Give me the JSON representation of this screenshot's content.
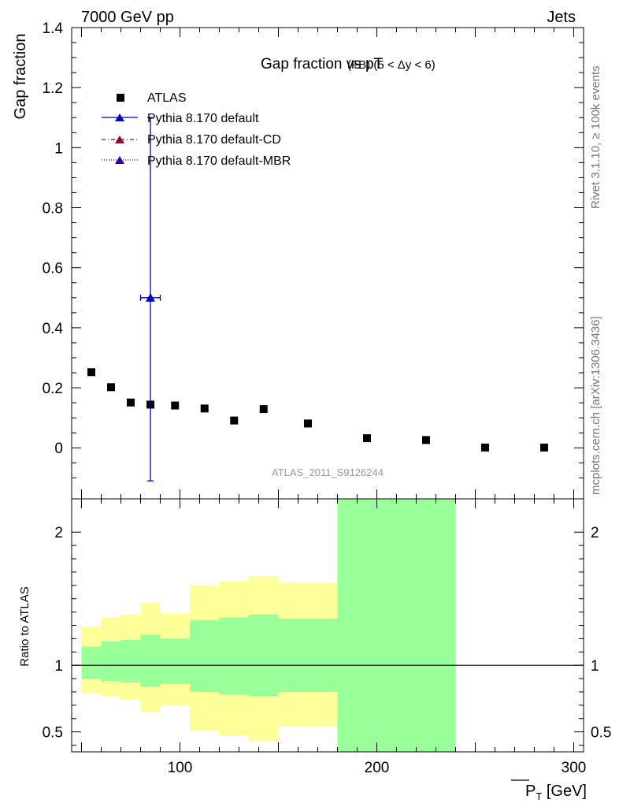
{
  "header": {
    "left": "7000 GeV pp",
    "right": "Jets"
  },
  "side_labels": {
    "top": "Rivet 3.1.10, ≥ 100k events",
    "bottom": "mcplots.cern.ch [arXiv:1306.3436]"
  },
  "chart_data": [
    {
      "type": "scatter",
      "title": "Gap fraction vs pT",
      "title_suffix": "(FB) (5 < Δy < 6)",
      "ylabel": "Gap fraction",
      "ylim": [
        -0.17,
        1.4
      ],
      "xlim": [
        45,
        305
      ],
      "yticks": [
        0,
        0.2,
        0.4,
        0.6,
        0.8,
        1,
        1.2,
        1.4
      ],
      "ytick_labels": [
        "0",
        "0.2",
        "0.4",
        "0.6",
        "0.8",
        "1",
        "1.2",
        "1.4"
      ],
      "watermark": "ATLAS_2011_S9126244",
      "legend": {
        "placement": "top-left",
        "entries": [
          "ATLAS",
          "Pythia 8.170 default",
          "Pythia 8.170 default-CD",
          "Pythia 8.170 default-MBR"
        ]
      },
      "series": [
        {
          "name": "ATLAS",
          "color": "#000000",
          "marker": "square",
          "x": [
            55,
            65,
            75,
            85,
            97.5,
            112.5,
            127.5,
            142.5,
            165,
            195,
            225,
            255,
            285
          ],
          "y": [
            0.252,
            0.202,
            0.151,
            0.144,
            0.141,
            0.131,
            0.091,
            0.129,
            0.081,
            0.032,
            0.026,
            0.001,
            0.001
          ]
        },
        {
          "name": "Pythia 8.170 default",
          "color": "#0000cc",
          "marker": "triangle",
          "x": [
            85
          ],
          "y": [
            0.5
          ],
          "xerr": [
            5
          ],
          "yerr_low": [
            0.61
          ],
          "yerr_high": [
            0.6
          ]
        },
        {
          "name": "Pythia 8.170 default-CD",
          "color": "#990033",
          "marker": "triangle",
          "x": [],
          "y": []
        },
        {
          "name": "Pythia 8.170 default-MBR",
          "color": "#330099",
          "marker": "triangle",
          "x": [],
          "y": []
        }
      ]
    },
    {
      "type": "area",
      "ylabel": "Ratio to ATLAS",
      "xlabel": "P̅T [GeV]",
      "ylim": [
        0.35,
        2.25
      ],
      "xlim": [
        45,
        305
      ],
      "xticks": [
        100,
        200,
        300
      ],
      "yticks": [
        0.5,
        1,
        2
      ],
      "ytick_labels": [
        "0.5",
        "1",
        "2"
      ],
      "bands": [
        {
          "name": "yellow",
          "color": "#ffff99",
          "bins": [
            {
              "x0": 50,
              "x1": 60,
              "lo": 0.79,
              "hi": 1.29
            },
            {
              "x0": 60,
              "x1": 70,
              "lo": 0.77,
              "hi": 1.36
            },
            {
              "x0": 70,
              "x1": 80,
              "lo": 0.74,
              "hi": 1.38
            },
            {
              "x0": 80,
              "x1": 90,
              "lo": 0.65,
              "hi": 1.47
            },
            {
              "x0": 90,
              "x1": 105,
              "lo": 0.7,
              "hi": 1.39
            },
            {
              "x0": 105,
              "x1": 120,
              "lo": 0.51,
              "hi": 1.6
            },
            {
              "x0": 120,
              "x1": 135,
              "lo": 0.47,
              "hi": 1.63
            },
            {
              "x0": 135,
              "x1": 150,
              "lo": 0.43,
              "hi": 1.67
            },
            {
              "x0": 150,
              "x1": 180,
              "lo": 0.54,
              "hi": 1.62
            },
            {
              "x0": 180,
              "x1": 240,
              "lo": 0.35,
              "hi": 2.25
            }
          ]
        },
        {
          "name": "green",
          "color": "#99ff99",
          "bins": [
            {
              "x0": 50,
              "x1": 60,
              "lo": 0.9,
              "hi": 1.14
            },
            {
              "x0": 60,
              "x1": 70,
              "lo": 0.88,
              "hi": 1.18
            },
            {
              "x0": 70,
              "x1": 80,
              "lo": 0.87,
              "hi": 1.19
            },
            {
              "x0": 80,
              "x1": 90,
              "lo": 0.84,
              "hi": 1.23
            },
            {
              "x0": 90,
              "x1": 105,
              "lo": 0.86,
              "hi": 1.2
            },
            {
              "x0": 105,
              "x1": 120,
              "lo": 0.8,
              "hi": 1.34
            },
            {
              "x0": 120,
              "x1": 135,
              "lo": 0.78,
              "hi": 1.36
            },
            {
              "x0": 135,
              "x1": 150,
              "lo": 0.77,
              "hi": 1.38
            },
            {
              "x0": 150,
              "x1": 180,
              "lo": 0.8,
              "hi": 1.35
            },
            {
              "x0": 180,
              "x1": 240,
              "lo": 0.35,
              "hi": 2.25
            }
          ]
        }
      ],
      "reference_line": 1
    }
  ]
}
